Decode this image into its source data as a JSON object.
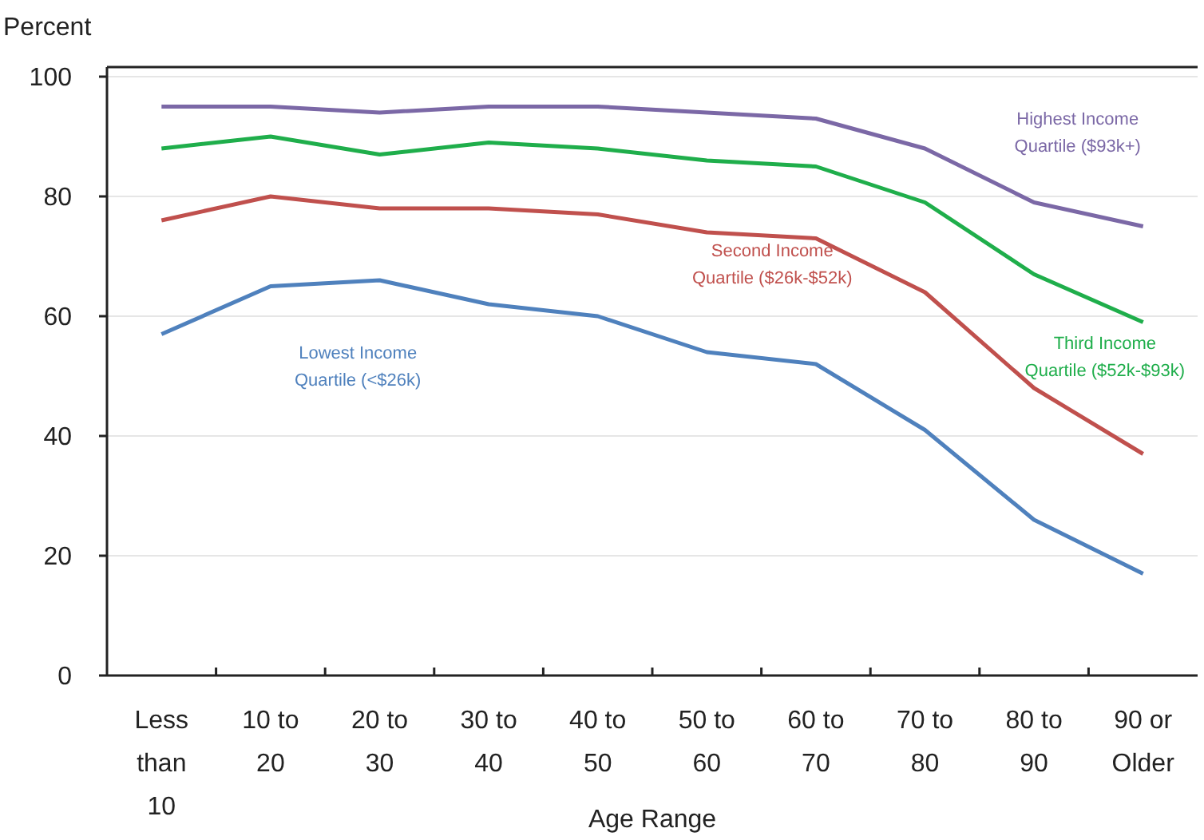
{
  "chart_data": {
    "type": "line",
    "ylabel": "Percent",
    "xlabel": "Age Range",
    "categories": [
      "Less than 10",
      "10 to 20",
      "20 to 30",
      "30 to 40",
      "40 to 50",
      "50 to 60",
      "60 to 70",
      "70 to 80",
      "80 to 90",
      "90 or Older"
    ],
    "series": [
      {
        "name": "Highest Income Quartile ($93k+)",
        "color": "#7b68a6",
        "values": [
          95,
          95,
          94,
          95,
          95,
          94,
          93,
          88,
          79,
          75
        ]
      },
      {
        "name": "Third Income Quartile ($52k-$93k)",
        "color": "#1fae4b",
        "values": [
          88,
          90,
          87,
          89,
          88,
          86,
          85,
          79,
          67,
          59
        ]
      },
      {
        "name": "Second Income Quartile ($26k-$52k)",
        "color": "#c0504d",
        "values": [
          76,
          80,
          78,
          78,
          77,
          74,
          73,
          64,
          48,
          37
        ]
      },
      {
        "name": "Lowest Income Quartile (<$26k)",
        "color": "#4f81bd",
        "values": [
          57,
          65,
          66,
          62,
          60,
          54,
          52,
          41,
          26,
          17
        ]
      }
    ],
    "ylim": [
      0,
      100
    ],
    "yticks": [
      0,
      20,
      40,
      60,
      80,
      100
    ],
    "grid": "y",
    "legend": false,
    "marker": "none",
    "line_style": "solid"
  }
}
